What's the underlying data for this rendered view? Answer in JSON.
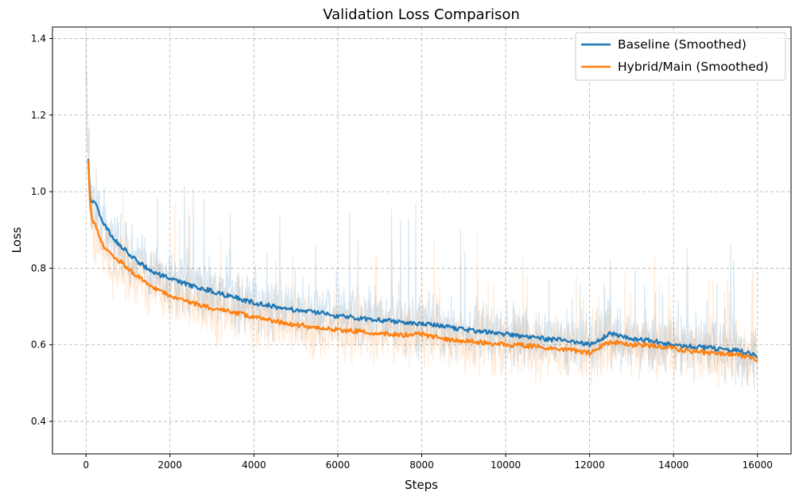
{
  "chart_data": {
    "type": "line",
    "title": "Validation Loss Comparison",
    "xlabel": "Steps",
    "ylabel": "Loss",
    "xlim": [
      -800,
      16800
    ],
    "ylim": [
      0.315,
      1.43
    ],
    "xticks": [
      0,
      2000,
      4000,
      6000,
      8000,
      10000,
      12000,
      14000,
      16000
    ],
    "yticks": [
      0.4,
      0.6,
      0.8,
      1.0,
      1.2,
      1.4
    ],
    "ytick_labels": [
      "0.4",
      "0.6",
      "0.8",
      "1.0",
      "1.2",
      "1.4"
    ],
    "grid": true,
    "legend_position": "top-right",
    "colors": {
      "baseline": "#1f77b4",
      "hybrid": "#ff7f0e",
      "grid": "#b0b0b0"
    },
    "series": [
      {
        "name": "Baseline (Smoothed)",
        "color": "#1f77b4",
        "x": [
          0,
          50,
          100,
          150,
          250,
          400,
          600,
          800,
          1000,
          1200,
          1400,
          1600,
          1800,
          2000,
          2500,
          3000,
          3500,
          4000,
          4500,
          5000,
          5500,
          6000,
          6500,
          7000,
          7500,
          8000,
          8500,
          9000,
          9500,
          10000,
          10500,
          11000,
          11500,
          12000,
          12500,
          13000,
          13500,
          14000,
          14500,
          15000,
          15500,
          16000
        ],
        "values": [
          1.38,
          1.09,
          0.98,
          0.975,
          0.965,
          0.92,
          0.885,
          0.86,
          0.84,
          0.82,
          0.805,
          0.79,
          0.78,
          0.772,
          0.755,
          0.74,
          0.725,
          0.71,
          0.7,
          0.69,
          0.685,
          0.675,
          0.67,
          0.665,
          0.66,
          0.655,
          0.648,
          0.64,
          0.635,
          0.628,
          0.62,
          0.615,
          0.61,
          0.6,
          0.63,
          0.615,
          0.61,
          0.6,
          0.595,
          0.59,
          0.585,
          0.572
        ],
        "raw_band": [
          0.08,
          0.1,
          0.12,
          0.12,
          0.12,
          0.11,
          0.1,
          0.1,
          0.09,
          0.09,
          0.09,
          0.09,
          0.09,
          0.09,
          0.09,
          0.09,
          0.09,
          0.09,
          0.09,
          0.09,
          0.09,
          0.09,
          0.09,
          0.09,
          0.09,
          0.09,
          0.09,
          0.09,
          0.09,
          0.09,
          0.09,
          0.09,
          0.09,
          0.09,
          0.09,
          0.09,
          0.09,
          0.09,
          0.09,
          0.09,
          0.09,
          0.09
        ]
      },
      {
        "name": "Hybrid/Main (Smoothed)",
        "color": "#ff7f0e",
        "x": [
          0,
          50,
          100,
          150,
          250,
          400,
          600,
          800,
          1000,
          1200,
          1400,
          1600,
          1800,
          2000,
          2500,
          3000,
          3500,
          4000,
          4500,
          5000,
          5500,
          6000,
          6500,
          7000,
          7500,
          8000,
          8500,
          9000,
          9500,
          10000,
          10500,
          11000,
          11500,
          12000,
          12500,
          13000,
          13500,
          14000,
          14500,
          15000,
          15500,
          16000
        ],
        "values": [
          1.3,
          1.08,
          0.96,
          0.93,
          0.9,
          0.86,
          0.835,
          0.82,
          0.8,
          0.78,
          0.765,
          0.75,
          0.74,
          0.728,
          0.71,
          0.695,
          0.685,
          0.672,
          0.662,
          0.652,
          0.645,
          0.638,
          0.635,
          0.63,
          0.625,
          0.628,
          0.615,
          0.61,
          0.605,
          0.6,
          0.598,
          0.592,
          0.588,
          0.578,
          0.608,
          0.6,
          0.598,
          0.59,
          0.582,
          0.578,
          0.575,
          0.562
        ],
        "raw_band": [
          0.08,
          0.1,
          0.12,
          0.12,
          0.12,
          0.11,
          0.1,
          0.1,
          0.09,
          0.09,
          0.09,
          0.09,
          0.09,
          0.09,
          0.09,
          0.09,
          0.09,
          0.09,
          0.09,
          0.09,
          0.09,
          0.09,
          0.09,
          0.09,
          0.09,
          0.09,
          0.09,
          0.09,
          0.09,
          0.09,
          0.09,
          0.09,
          0.09,
          0.09,
          0.09,
          0.09,
          0.09,
          0.09,
          0.09,
          0.09,
          0.09,
          0.09
        ]
      }
    ]
  }
}
